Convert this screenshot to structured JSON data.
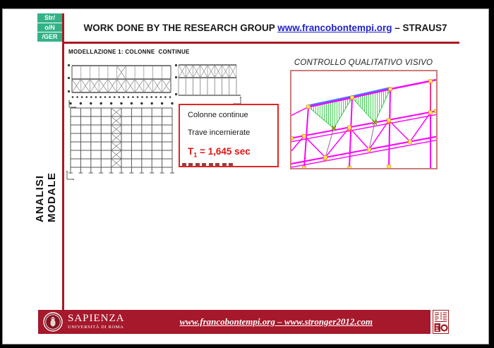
{
  "header": {
    "title": "WORK DONE BY THE RESEARCH GROUP ",
    "link": "www.francobontempi.org",
    "suffix": " – STRAUS7"
  },
  "logo": {
    "line1": "Str/",
    "line2": "o/N",
    "line3": "/GER"
  },
  "sidebar": {
    "label": "ANALISI MODALE"
  },
  "content": {
    "section_label": "MODELLAZIONE 1: COLONNE  CONTINUE",
    "info_box": {
      "line1": "Colonne continue",
      "line2": "Trave incernierate",
      "t_symbol": "T",
      "t_subscript": "1",
      "t_value": " = 1,645 sec"
    },
    "visual_check_title": "CONTROLLO QUALITATIVO VISIVO"
  },
  "footer": {
    "university_name": "SAPIENZA",
    "university_subtitle": "UNIVERSITÀ DI ROMA",
    "links_text": "www.francobontempi.org – www.stronger2012.com"
  },
  "diagrams": {
    "plan_truss": {
      "bays": 11,
      "braced_bay_index": 5,
      "node_count": 22
    },
    "elevation_truss": {
      "bays": 8
    },
    "frame": {
      "columns": 11,
      "stories": 7,
      "braced_bay_index": 4
    }
  },
  "colors": {
    "slide_red": "#A6182B",
    "rule_red": "#A81A22",
    "box_border_red": "#E02424",
    "t1_text_red": "#E01414",
    "link_blue": "#2222CC",
    "logo_green": "#33B286",
    "image_border_pink": "#CC7C7C",
    "model_magenta": "#FF00FF",
    "model_node_yellow": "#FFE74C",
    "model_hatch_green": "#2ECC40",
    "model_chord_blue": "#4477FF"
  }
}
